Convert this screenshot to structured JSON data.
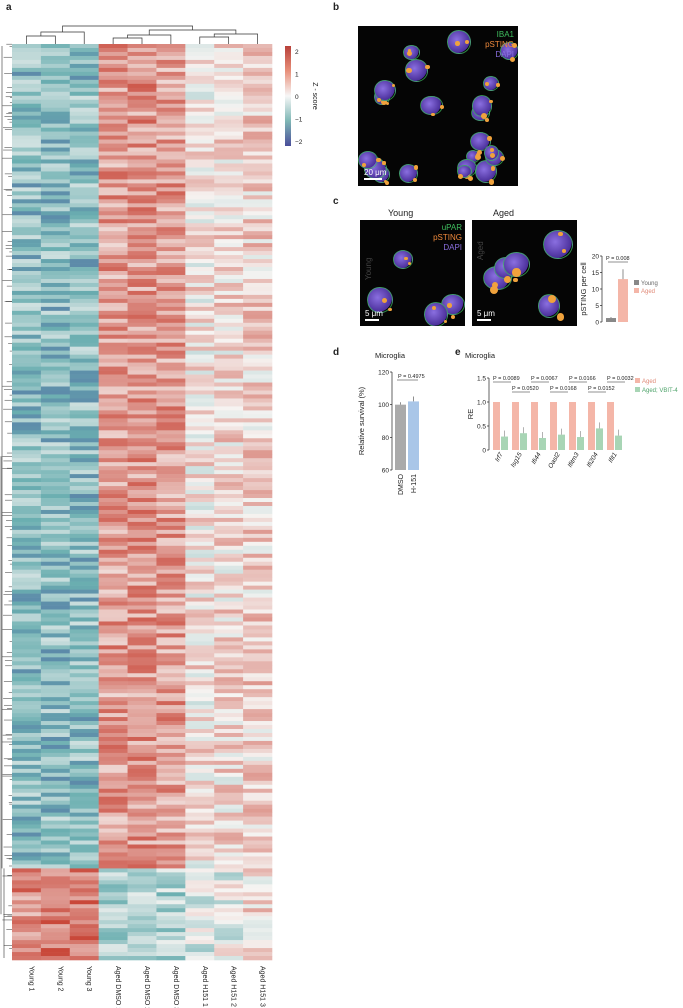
{
  "panels": {
    "a": "a",
    "b": "b",
    "c": "c",
    "d": "d",
    "e": "e"
  },
  "heatmap": {
    "samples": [
      "Young 1",
      "Young 2",
      "Young 3",
      "Aged DMSO 1",
      "Aged DMSO 2",
      "Aged DMSO 3",
      "Aged H151 1",
      "Aged H151 2",
      "Aged H151 3"
    ],
    "colorbar_label": "Z - score",
    "colorbar_ticks": [
      "2",
      "1",
      "0",
      "−1",
      "−2"
    ],
    "colors": {
      "high": "#c0392b",
      "mid": "#f7f7f7",
      "low": "#5b4fa0",
      "teal": "#6fb7b1"
    }
  },
  "panel_b": {
    "legend": [
      "IBA1",
      "pSTING",
      "DAPI"
    ],
    "legend_colors": [
      "#3fbf5f",
      "#f08a3c",
      "#8a6fe0"
    ],
    "scale_bar": "20 μm"
  },
  "panel_c": {
    "titles": [
      "Young",
      "Aged"
    ],
    "legend": [
      "uPAR",
      "pSTING",
      "DAPI"
    ],
    "legend_colors": [
      "#3fbf5f",
      "#f08a3c",
      "#8a6fe0"
    ],
    "scale_bar": "5 μm",
    "watermarks": [
      "Young",
      "Aged"
    ]
  },
  "chart_data": [
    {
      "type": "bar",
      "panel": "c",
      "categories": [
        "Young",
        "Aged"
      ],
      "values": [
        1.2,
        13
      ],
      "errors": [
        0.3,
        3
      ],
      "colors": [
        "#888888",
        "#f4b6a8"
      ],
      "ylabel": "pSTING per cell",
      "ylim": [
        0,
        20
      ],
      "yticks": [
        "0",
        "5",
        "10",
        "15",
        "20"
      ],
      "pvalue": "P = 0.008",
      "legend": [
        "Young",
        "Aged"
      ]
    },
    {
      "type": "bar",
      "panel": "d",
      "title": "Microglia",
      "categories": [
        "DMSO",
        "H-151"
      ],
      "values": [
        100,
        102
      ],
      "errors": [
        1.5,
        3
      ],
      "colors": [
        "#aaaaaa",
        "#a9c6e8"
      ],
      "ylabel": "Relative survival (%)",
      "ylim": [
        60,
        120
      ],
      "yticks": [
        "60",
        "80",
        "100",
        "120"
      ],
      "pvalue": "P = 0.4975"
    },
    {
      "type": "bar",
      "panel": "e",
      "title": "Microglia",
      "categories": [
        "Irf7",
        "Isg15",
        "Ifi44",
        "Oasl2",
        "Ifitm3",
        "Ifi204",
        "Ifit1"
      ],
      "series": [
        {
          "name": "Aged",
          "values": [
            1,
            1,
            1,
            1,
            1,
            1,
            1
          ],
          "color": "#f4b6a8"
        },
        {
          "name": "Aged; VBIT-4",
          "values": [
            0.28,
            0.35,
            0.25,
            0.32,
            0.27,
            0.45,
            0.3
          ],
          "color": "#a8d5b5"
        }
      ],
      "ylabel": "RE",
      "ylim": [
        0,
        1.5
      ],
      "yticks": [
        "0",
        "0.5",
        "1.0",
        "1.5"
      ],
      "pvalues_top": [
        "P = 0.0089",
        "P = 0.0067",
        "P = 0.0166",
        "P = 0.0032"
      ],
      "pvalues_bottom": [
        "P = 0.0520",
        "P = 0.0168",
        "P = 0.0152"
      ]
    }
  ]
}
